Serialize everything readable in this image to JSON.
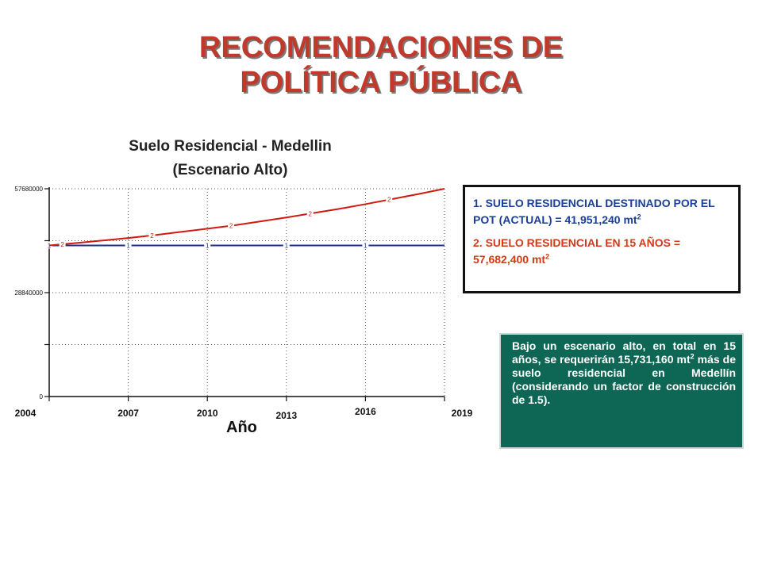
{
  "slide": {
    "title_line1": "RECOMENDACIONES DE",
    "title_line2": "POLÍTICA PÚBLICA"
  },
  "chart_data": {
    "type": "line",
    "title_line1": "Suelo Residencial - Medellin",
    "title_line2": "(Escenario Alto)",
    "xlabel": "Año",
    "ylabel": "",
    "xlim": [
      2004,
      2019
    ],
    "ylim": [
      0,
      57680000
    ],
    "xticks": [
      "2004",
      "2007",
      "2010",
      "2013",
      "2016",
      "2019"
    ],
    "yticks": [
      "57680000",
      "28840000",
      "0"
    ],
    "grid": true,
    "series": [
      {
        "marker": "1",
        "color": "#1f2f8c",
        "x": [
          2004,
          2007,
          2010,
          2013,
          2016,
          2019
        ],
        "y": [
          41951240,
          41951240,
          41951240,
          41951240,
          41951240,
          41951240
        ],
        "marker_x": [
          2004,
          2007,
          2010,
          2013,
          2016
        ]
      },
      {
        "marker": "2",
        "color": "#d01a10",
        "x": [
          2004,
          2005,
          2006,
          2007,
          2008,
          2009,
          2010,
          2011,
          2012,
          2013,
          2014,
          2015,
          2016,
          2017,
          2018,
          2019
        ],
        "y": [
          41950000,
          42600000,
          43300000,
          44000000,
          44800000,
          45700000,
          46600000,
          47500000,
          48600000,
          49700000,
          50900000,
          52100000,
          53400000,
          54800000,
          56200000,
          57682400
        ],
        "marker_x": [
          2004.5,
          2007.9,
          2010.9,
          2013.9,
          2016.9
        ]
      }
    ]
  },
  "info_box": {
    "line1_text": "1. SUELO RESIDENCIAL DESTINADO POR EL POT (ACTUAL) = 41,951,240",
    "line2_text": "2. SUELO RESIDENCIAL EN 15 AÑOS = 57,682,400",
    "unit": "mt",
    "unit_exp": "2"
  },
  "note_box": {
    "text_a": "Bajo un escenario alto, en total en 15 años, se requerirán 15,731,160 mt",
    "exp": "2",
    "text_b": " más de suelo residencial en Medellín (considerando un factor de construcción de 1.5)."
  }
}
